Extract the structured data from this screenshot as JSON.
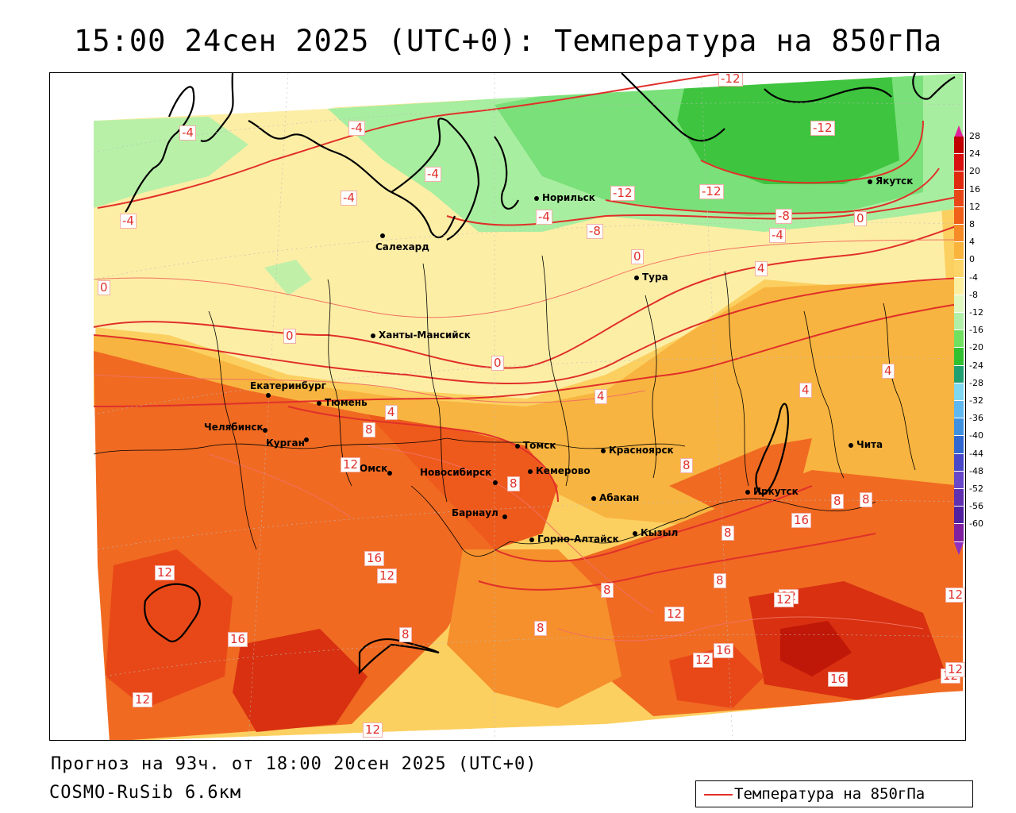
{
  "header": {
    "title": "15:00 24сен 2025 (UTC+0): Температура на 850гПа"
  },
  "footer": {
    "forecast": "Прогноз на 93ч. от 18:00 20сен 2025 (UTC+0)",
    "model": "COSMO-RuSib 6.6км"
  },
  "legend": {
    "entry": "Температура на 850гПа",
    "line_color": "#e0302a"
  },
  "colorbar": {
    "ticks": [
      "28",
      "24",
      "20",
      "16",
      "12",
      "8",
      "4",
      "0",
      "-4",
      "-8",
      "-12",
      "-16",
      "-20",
      "-24",
      "-28",
      "-32",
      "-36",
      "-40",
      "-44",
      "-48",
      "-52",
      "-56",
      "-60"
    ],
    "colors": [
      "#c00000",
      "#d81010",
      "#e02a10",
      "#e84818",
      "#f06018",
      "#f58c28",
      "#fab43c",
      "#fcd468",
      "#fcf0a0",
      "#e0f8c0",
      "#b0f0a8",
      "#70e060",
      "#30c030",
      "#20a070",
      "#80d8f0",
      "#60b8f0",
      "#4090e0",
      "#3068d0",
      "#4848c8",
      "#6848c8",
      "#6030b0",
      "#5020a0",
      "#8020a0"
    ],
    "top_color": "#e0209a",
    "bottom_color": "#9030c0"
  },
  "cities": [
    {
      "name": "Якутск"
    },
    {
      "name": "Норильск"
    },
    {
      "name": "Салехард"
    },
    {
      "name": "Тура"
    },
    {
      "name": "Ханты-Мансийск"
    },
    {
      "name": "Екатеринбург"
    },
    {
      "name": "Тюмень"
    },
    {
      "name": "Челябинск"
    },
    {
      "name": "Курган"
    },
    {
      "name": "Омск"
    },
    {
      "name": "Новосибирск"
    },
    {
      "name": "Томск"
    },
    {
      "name": "Кемерово"
    },
    {
      "name": "Красноярск"
    },
    {
      "name": "Барнаул"
    },
    {
      "name": "Абакан"
    },
    {
      "name": "Горно-Алтайск"
    },
    {
      "name": "Кызыл"
    },
    {
      "name": "Иркутск"
    },
    {
      "name": "Чита"
    }
  ],
  "contour_labels": [
    "-12",
    "-12",
    "-12",
    "-12",
    "-4",
    "-4",
    "-4",
    "-4",
    "-4",
    "-4",
    "-4",
    "-8",
    "-8",
    "0",
    "0",
    "0",
    "0",
    "0",
    "4",
    "4",
    "4",
    "4",
    "4",
    "8",
    "8",
    "8",
    "8",
    "8",
    "8",
    "8",
    "8",
    "8",
    "12",
    "12",
    "12",
    "12",
    "12",
    "12",
    "12",
    "12",
    "12",
    "16",
    "16",
    "16",
    "16",
    "16",
    "8",
    "12",
    "12",
    "12"
  ]
}
